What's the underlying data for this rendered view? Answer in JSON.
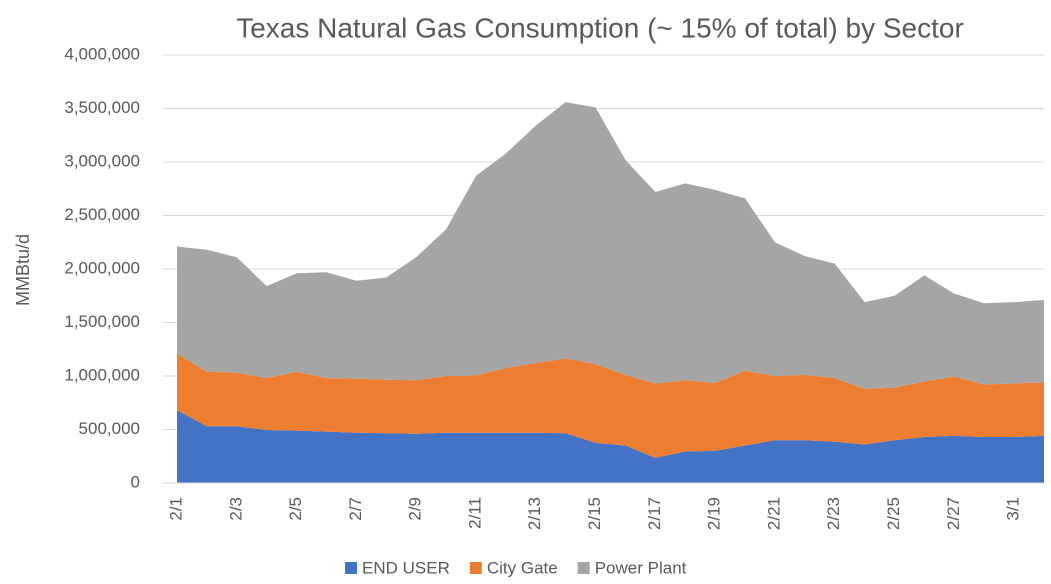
{
  "chart_data": {
    "type": "stacked_area",
    "title": "Texas Natural Gas Consumption (~ 15% of total) by Sector",
    "y_label": "MMBtu/d",
    "categories": [
      "2/1",
      null,
      "2/3",
      null,
      "2/5",
      null,
      "2/7",
      null,
      "2/9",
      null,
      "2/11",
      null,
      "2/13",
      null,
      "2/15",
      null,
      "2/17",
      null,
      "2/19",
      null,
      "2/21",
      null,
      "2/23",
      null,
      "2/25",
      null,
      "2/27",
      null,
      "3/1",
      null
    ],
    "series": [
      {
        "name": "END USER",
        "color": "#4472c4",
        "values": [
          680000,
          530000,
          530000,
          495000,
          490000,
          480000,
          470000,
          465000,
          460000,
          470000,
          470000,
          470000,
          470000,
          465000,
          375000,
          350000,
          235000,
          295000,
          300000,
          350000,
          400000,
          400000,
          385000,
          360000,
          400000,
          430000,
          440000,
          430000,
          430000,
          440000
        ]
      },
      {
        "name": "City Gate",
        "color": "#ed7d31",
        "values": [
          530000,
          510000,
          500000,
          485000,
          550000,
          500000,
          505000,
          500000,
          500000,
          530000,
          535000,
          605000,
          650000,
          700000,
          735000,
          660000,
          695000,
          665000,
          635000,
          700000,
          600000,
          610000,
          595000,
          520000,
          490000,
          520000,
          555000,
          490000,
          500000,
          500000
        ]
      },
      {
        "name": "Power Plant",
        "color": "#a5a5a5",
        "values": [
          1000000,
          1140000,
          1080000,
          860000,
          920000,
          990000,
          915000,
          955000,
          1150000,
          1370000,
          1865000,
          2005000,
          2220000,
          2395000,
          2400000,
          2010000,
          1790000,
          1840000,
          1805000,
          1610000,
          1250000,
          1110000,
          1070000,
          810000,
          860000,
          990000,
          775000,
          760000,
          760000,
          770000
        ]
      }
    ],
    "ylim": [
      0,
      4000000
    ],
    "yticks": [
      0,
      {
        "value": 500000,
        "label": "500,000"
      },
      {
        "value": 1000000,
        "label": "1,000,000"
      },
      {
        "value": 1500000,
        "label": "1,500,000"
      },
      {
        "value": 2000000,
        "label": "2,000,000"
      },
      {
        "value": 2500000,
        "label": "2,500,000"
      },
      {
        "value": 3000000,
        "label": "3,000,000"
      },
      {
        "value": 3500000,
        "label": "3,500,000"
      },
      {
        "value": 4000000,
        "label": "4,000,000"
      }
    ],
    "grid": true,
    "legend": "bottom"
  }
}
